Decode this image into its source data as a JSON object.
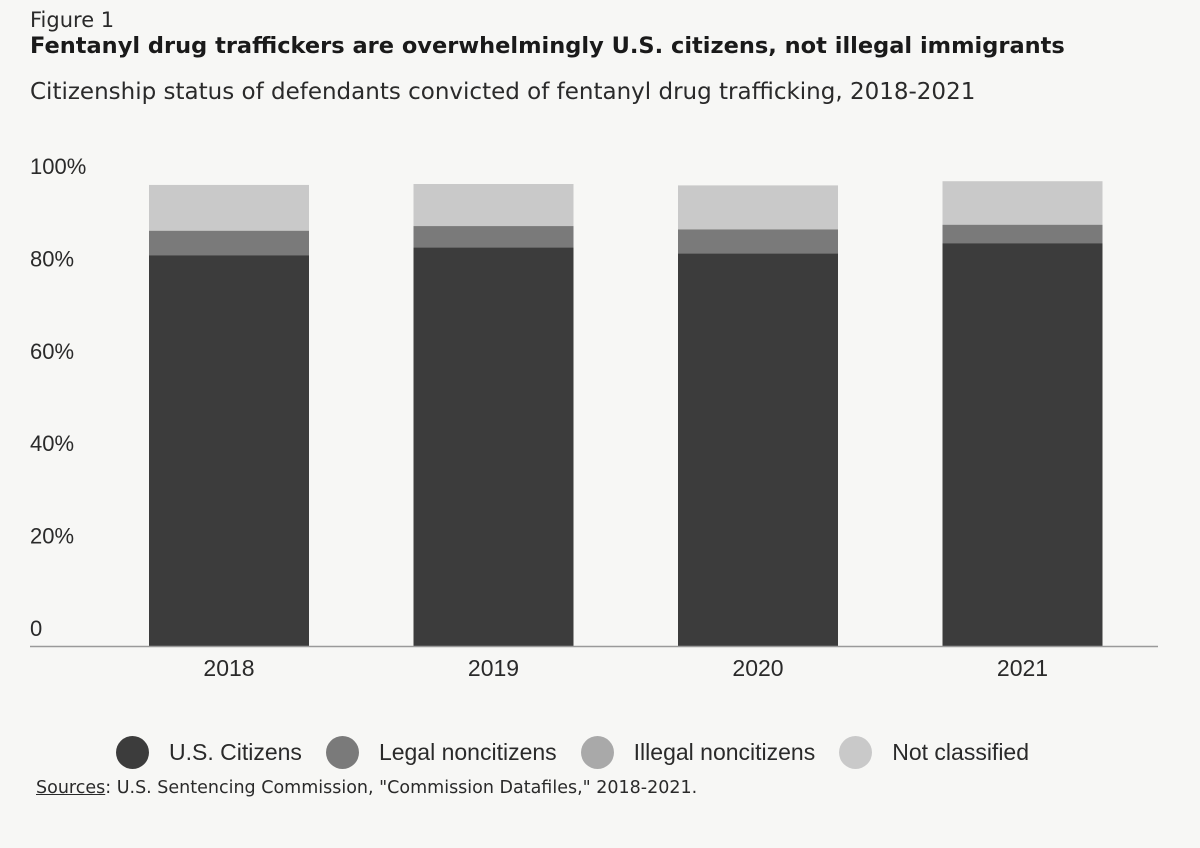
{
  "figure_label": "Figure 1",
  "title": "Fentanyl drug traffickers are overwhelmingly U.S. citizens, not illegal immigrants",
  "subtitle": "Citizenship status of defendants convicted of fentanyl drug trafficking, 2018-2021",
  "sources": {
    "label": "Sources",
    "text": ": U.S. Sentencing Commission, \"Commission Datafiles,\" 2018-2021."
  },
  "colors": {
    "us_citizens": "#3c3c3c",
    "legal_noncitizens": "#7a7a7a",
    "illegal_noncitizens": "#a9a9a9",
    "not_classified": "#c9c9c9",
    "background": "#f7f7f5"
  },
  "chart_data": {
    "type": "bar",
    "stacked": true,
    "categories": [
      "2018",
      "2019",
      "2020",
      "2021"
    ],
    "series": [
      {
        "name": "U.S. Citizens",
        "values": [
          84.6,
          86.3,
          85.0,
          87.2
        ]
      },
      {
        "name": "Legal noncitizens",
        "values": [
          5.3,
          4.6,
          5.2,
          4.0
        ]
      },
      {
        "name": "Illegal noncitizens",
        "values": [
          0,
          0,
          0,
          0
        ]
      },
      {
        "name": "Not classified",
        "values": [
          9.9,
          9.1,
          9.5,
          9.4
        ]
      }
    ],
    "title": "Fentanyl drug traffickers are overwhelmingly U.S. citizens, not illegal immigrants",
    "xlabel": "",
    "ylabel": "",
    "ylim": [
      0,
      100
    ],
    "yticks": [
      "0",
      "20%",
      "40%",
      "60%",
      "80%",
      "100%"
    ],
    "ytick_values": [
      0,
      20,
      40,
      60,
      80,
      100
    ],
    "grid": false,
    "legend_position": "bottom"
  }
}
